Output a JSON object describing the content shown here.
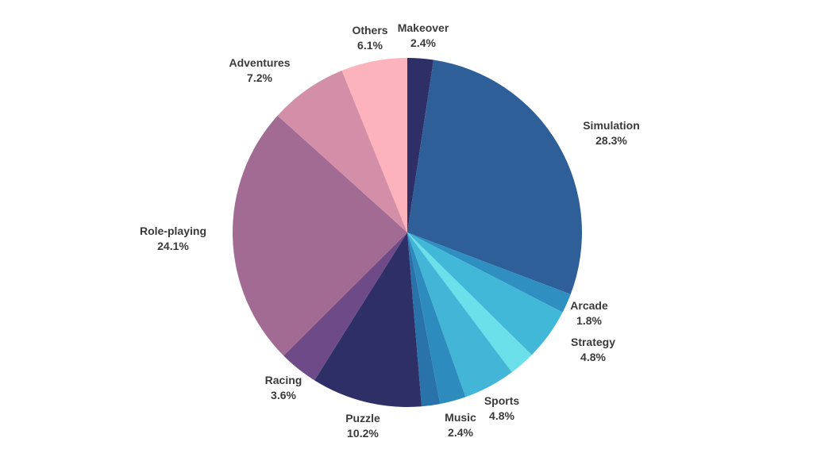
{
  "chart_data": {
    "type": "pie",
    "title": "",
    "start_angle_deg": 0,
    "direction": "clockwise",
    "slices": [
      {
        "label": "Makeover",
        "value": 2.4,
        "display": "2.4%",
        "color": "#2e2f67"
      },
      {
        "label": "Simulation",
        "value": 28.3,
        "display": "28.3%",
        "color": "#2e5f99"
      },
      {
        "label": "Arcade",
        "value": 1.8,
        "display": "1.8%",
        "color": "#2f8fc0"
      },
      {
        "label": "Strategy",
        "value": 4.8,
        "display": "4.8%",
        "color": "#41b8d8"
      },
      {
        "label": "",
        "value": 2.4,
        "display": "",
        "color": "#6ce0ea"
      },
      {
        "label": "Sports",
        "value": 4.8,
        "display": "4.8%",
        "color": "#43b5d6"
      },
      {
        "label": "Music",
        "value": 2.4,
        "display": "2.4%",
        "color": "#2e8bbe"
      },
      {
        "label": "",
        "value": 1.7,
        "display": "",
        "color": "#2a72aa"
      },
      {
        "label": "Puzzle",
        "value": 10.2,
        "display": "10.2%",
        "color": "#2e2f67"
      },
      {
        "label": "Racing",
        "value": 3.6,
        "display": "3.6%",
        "color": "#6e4a88"
      },
      {
        "label": "Role-playing",
        "value": 24.1,
        "display": "24.1%",
        "color": "#a26b94"
      },
      {
        "label": "Adventures",
        "value": 7.2,
        "display": "7.2%",
        "color": "#d48fa8"
      },
      {
        "label": "Others",
        "value": 6.1,
        "display": "6.1%",
        "color": "#fdb3bb"
      }
    ],
    "legend": "none",
    "labels": "outside"
  }
}
